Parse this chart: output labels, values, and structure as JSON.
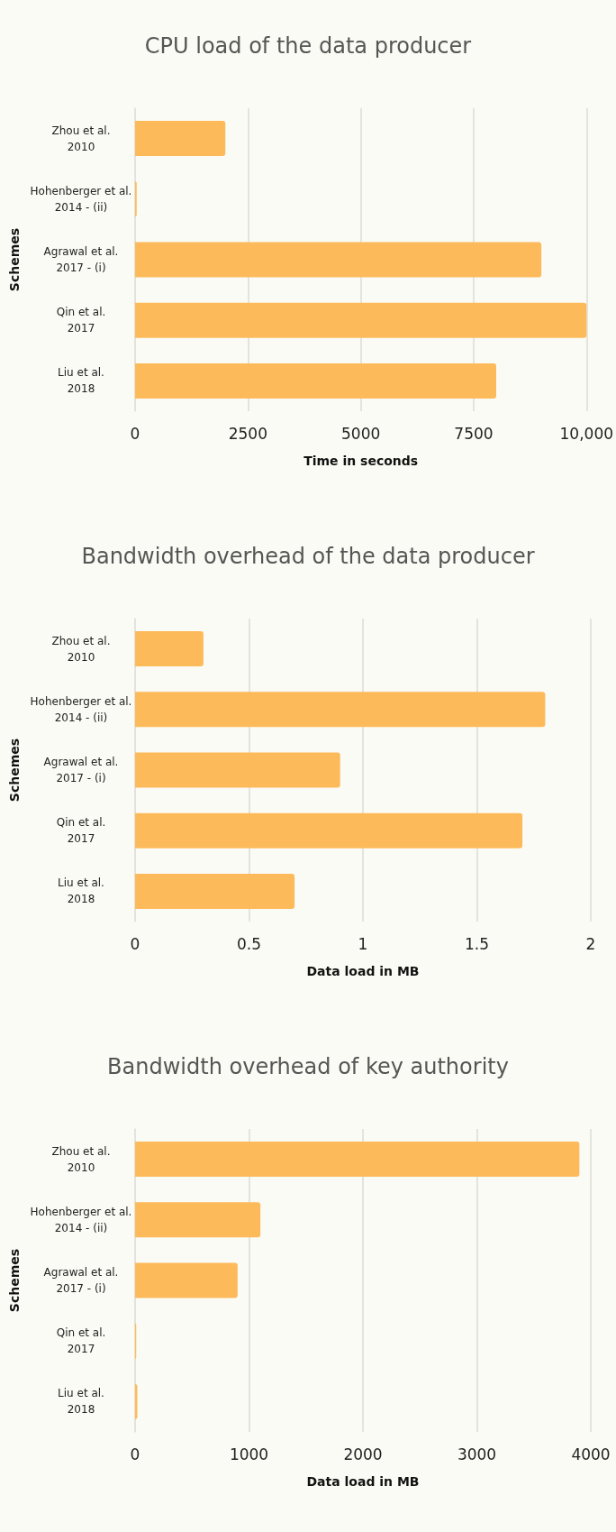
{
  "chart_data": [
    {
      "type": "bar",
      "orientation": "horizontal",
      "title": "CPU load of the data producer",
      "xlabel": "Time in seconds",
      "ylabel": "Schemes",
      "categories": [
        "Zhou et al. 2010",
        "Hohenberger et al. 2014 - (ii)",
        "Agrawal et al. 2017 - (i)",
        "Qin et al. 2017",
        "Liu et al. 2018"
      ],
      "values": [
        2000,
        35,
        9000,
        10000,
        8000
      ],
      "color": "#fdba5a",
      "xlim": [
        0,
        10000
      ],
      "xticks": [
        0,
        2500,
        5000,
        7500,
        {
          "value": 10000,
          "label": "10,000"
        }
      ],
      "grid": "x"
    },
    {
      "type": "bar",
      "orientation": "horizontal",
      "title": "Bandwidth overhead of the data producer",
      "xlabel": "Data load in MB",
      "ylabel": "Schemes",
      "categories": [
        "Zhou et al. 2010",
        "Hohenberger et al. 2014 - (ii)",
        "Agrawal et al. 2017 - (i)",
        "Qin et al. 2017",
        "Liu et al. 2018"
      ],
      "values": [
        0.3,
        1.8,
        0.9,
        1.7,
        0.7
      ],
      "color": "#fdba5a",
      "xlim": [
        0,
        2
      ],
      "xticks": [
        0,
        0.5,
        1,
        1.5,
        2
      ],
      "grid": "x"
    },
    {
      "type": "bar",
      "orientation": "horizontal",
      "title": "Bandwidth overhead of key authority",
      "xlabel": "Data load in MB",
      "ylabel": "Schemes",
      "categories": [
        "Zhou et al. 2010",
        "Hohenberger et al. 2014 - (ii)",
        "Agrawal et al. 2017 - (i)",
        "Qin et al. 2017",
        "Liu et al. 2018"
      ],
      "values": [
        3900,
        1100,
        900,
        10,
        20
      ],
      "color": "#fdba5a",
      "xlim": [
        0,
        4000
      ],
      "xticks": [
        0,
        1000,
        2000,
        3000,
        4000
      ],
      "grid": "x"
    }
  ]
}
